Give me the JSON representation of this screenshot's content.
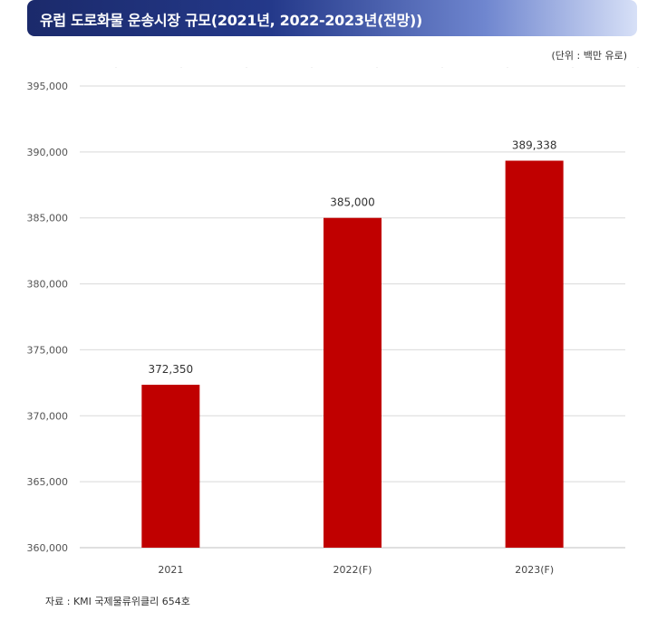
{
  "title": "유럽 도로화물 운송시장 규모(2021년, 2022-2023년(전망))",
  "unit_note": "(단위 : 백만 유로)",
  "source": "자료 : KMI 국제물류위클리 654호",
  "chart_data": {
    "type": "bar",
    "categories": [
      "2021",
      "2022(F)",
      "2023(F)"
    ],
    "values": [
      372350,
      385000,
      389338
    ],
    "value_labels": [
      "372,350",
      "385,000",
      "389,338"
    ],
    "y_ticks": [
      "360,000",
      "365,000",
      "370,000",
      "375,000",
      "380,000",
      "385,000",
      "390,000",
      "395,000"
    ],
    "ylim": [
      360000,
      395000
    ],
    "grid": true,
    "bar_color": "#c00000",
    "xlabel": "",
    "ylabel": ""
  }
}
